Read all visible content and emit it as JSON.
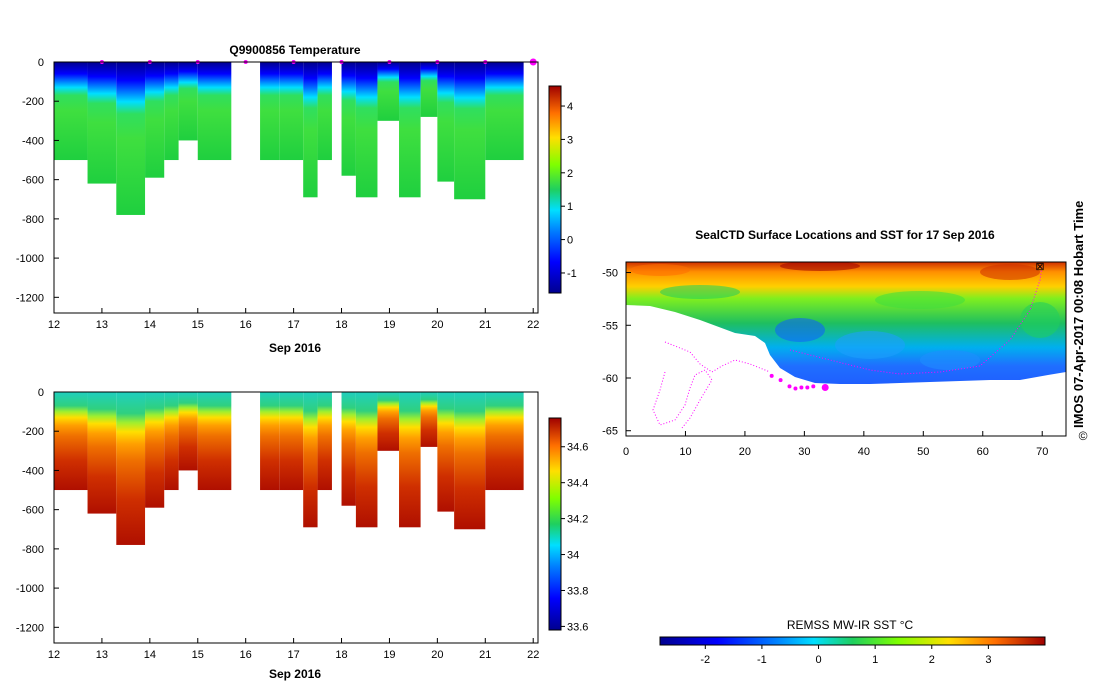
{
  "colors": {
    "land": "#ffffff",
    "track": "#ff00ff",
    "axis": "#000000"
  },
  "chart_data": [
    {
      "id": "temperature",
      "type": "heatmap",
      "title": "Q9900856  Temperature",
      "xlabel": "Sep 2016",
      "ylabel": "",
      "xlim": [
        12,
        22.1
      ],
      "ylim": [
        -1280,
        0
      ],
      "xticks": [
        "12",
        "13",
        "14",
        "15",
        "16",
        "17",
        "18",
        "19",
        "20",
        "21",
        "22"
      ],
      "yticks": [
        "0",
        "-200",
        "-400",
        "-600",
        "-800",
        "-1000",
        "-1200"
      ],
      "colorbar": {
        "min": -1.6,
        "max": 4.6,
        "ticks": [
          "4",
          "3",
          "2",
          "1",
          "0",
          "-1"
        ]
      },
      "profile_markers": [
        13,
        14,
        15,
        16,
        17,
        18,
        19,
        20,
        21,
        22
      ],
      "profiles": [
        {
          "x0": 12.0,
          "x1": 12.7,
          "depth": 500
        },
        {
          "x0": 12.7,
          "x1": 13.3,
          "depth": 620
        },
        {
          "x0": 13.3,
          "x1": 13.9,
          "depth": 780
        },
        {
          "x0": 13.9,
          "x1": 14.3,
          "depth": 590
        },
        {
          "x0": 14.3,
          "x1": 14.6,
          "depth": 500
        },
        {
          "x0": 14.6,
          "x1": 15.0,
          "depth": 400
        },
        {
          "x0": 15.0,
          "x1": 15.7,
          "depth": 500
        },
        {
          "x0": 16.3,
          "x1": 16.7,
          "depth": 500
        },
        {
          "x0": 16.7,
          "x1": 17.2,
          "depth": 500
        },
        {
          "x0": 17.2,
          "x1": 17.5,
          "depth": 690
        },
        {
          "x0": 17.5,
          "x1": 17.8,
          "depth": 500
        },
        {
          "x0": 18.0,
          "x1": 18.3,
          "depth": 580
        },
        {
          "x0": 18.3,
          "x1": 18.75,
          "depth": 690
        },
        {
          "x0": 18.75,
          "x1": 19.2,
          "depth": 300
        },
        {
          "x0": 19.2,
          "x1": 19.65,
          "depth": 690
        },
        {
          "x0": 19.65,
          "x1": 20.0,
          "depth": 280
        },
        {
          "x0": 20.0,
          "x1": 20.35,
          "depth": 610
        },
        {
          "x0": 20.35,
          "x1": 21.0,
          "depth": 700
        },
        {
          "x0": 21.0,
          "x1": 21.8,
          "depth": 500
        }
      ]
    },
    {
      "id": "salinity",
      "type": "heatmap",
      "title": "",
      "xlabel": "Sep 2016",
      "ylabel": "",
      "xlim": [
        12,
        22.1
      ],
      "ylim": [
        -1280,
        0
      ],
      "xticks": [
        "12",
        "13",
        "14",
        "15",
        "16",
        "17",
        "18",
        "19",
        "20",
        "21",
        "22"
      ],
      "yticks": [
        "0",
        "-200",
        "-400",
        "-600",
        "-800",
        "-1000",
        "-1200"
      ],
      "colorbar": {
        "min": 33.58,
        "max": 34.76,
        "ticks": [
          "34.6",
          "34.4",
          "34.2",
          "34",
          "33.8",
          "33.6"
        ]
      },
      "profiles": [
        {
          "x0": 12.0,
          "x1": 12.7,
          "depth": 500
        },
        {
          "x0": 12.7,
          "x1": 13.3,
          "depth": 620
        },
        {
          "x0": 13.3,
          "x1": 13.9,
          "depth": 780
        },
        {
          "x0": 13.9,
          "x1": 14.3,
          "depth": 590
        },
        {
          "x0": 14.3,
          "x1": 14.6,
          "depth": 500
        },
        {
          "x0": 14.6,
          "x1": 15.0,
          "depth": 400
        },
        {
          "x0": 15.0,
          "x1": 15.7,
          "depth": 500
        },
        {
          "x0": 16.3,
          "x1": 16.7,
          "depth": 500
        },
        {
          "x0": 16.7,
          "x1": 17.2,
          "depth": 500
        },
        {
          "x0": 17.2,
          "x1": 17.5,
          "depth": 690
        },
        {
          "x0": 17.5,
          "x1": 17.8,
          "depth": 500
        },
        {
          "x0": 18.0,
          "x1": 18.3,
          "depth": 580
        },
        {
          "x0": 18.3,
          "x1": 18.75,
          "depth": 690
        },
        {
          "x0": 18.75,
          "x1": 19.2,
          "depth": 300
        },
        {
          "x0": 19.2,
          "x1": 19.65,
          "depth": 690
        },
        {
          "x0": 19.65,
          "x1": 20.0,
          "depth": 280
        },
        {
          "x0": 20.0,
          "x1": 20.35,
          "depth": 610
        },
        {
          "x0": 20.35,
          "x1": 21.0,
          "depth": 700
        },
        {
          "x0": 21.0,
          "x1": 21.8,
          "depth": 500
        }
      ]
    },
    {
      "id": "sst_map",
      "type": "heatmap",
      "title": "SealCTD Surface Locations and SST for 17 Sep 2016",
      "xlabel": "",
      "ylabel": "",
      "xlim": [
        0,
        74
      ],
      "ylim": [
        -65.5,
        -49
      ],
      "xticks": [
        "0",
        "10",
        "20",
        "30",
        "40",
        "50",
        "60",
        "70"
      ],
      "yticks": [
        "-50",
        "-55",
        "-60",
        "-65"
      ],
      "colorbar": {
        "label": "REMSS MW-IR SST °C",
        "min": -2.8,
        "max": 4,
        "ticks": [
          "-2",
          "-1",
          "0",
          "1",
          "2",
          "3"
        ]
      },
      "track_points": [
        {
          "lon": 24.5,
          "lat": -59.8
        },
        {
          "lon": 26,
          "lat": -60.2
        },
        {
          "lon": 27.5,
          "lat": -60.8
        },
        {
          "lon": 28.5,
          "lat": -61.0
        },
        {
          "lon": 29.5,
          "lat": -60.9
        },
        {
          "lon": 30.5,
          "lat": -60.9
        },
        {
          "lon": 31.5,
          "lat": -60.8
        },
        {
          "lon": 33.5,
          "lat": -60.9
        }
      ]
    }
  ],
  "side_label": "IMOS 07-Apr-2017 00:08 Hobart Time",
  "copyright_symbol": "©"
}
